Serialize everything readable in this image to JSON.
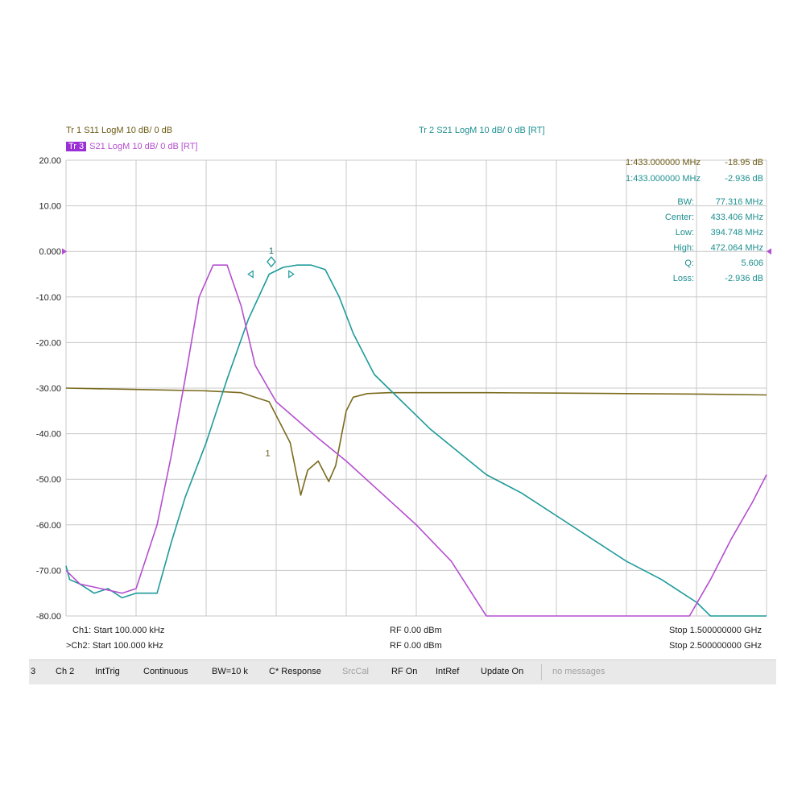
{
  "header": {
    "tr1": "Tr 1   S11  LogM  10 dB/  0 dB",
    "tr3_tag": "Tr 3",
    "tr3": "S21  LogM  10 dB/  0 dB [RT]",
    "tr2": "Tr 2   S21  LogM  10 dB/  0 dB [RT]"
  },
  "markers": {
    "m1_s11": {
      "label": "1:433.000000 MHz",
      "value": "-18.95 dB"
    },
    "m1_s21": {
      "label": "1:433.000000 MHz",
      "value": "-2.936 dB"
    }
  },
  "bw_stats": [
    {
      "label": "BW:",
      "value": "77.316 MHz"
    },
    {
      "label": "Center:",
      "value": "433.406 MHz"
    },
    {
      "label": "Low:",
      "value": "394.748 MHz"
    },
    {
      "label": "High:",
      "value": "472.064 MHz"
    },
    {
      "label": "Q:",
      "value": "5.606"
    },
    {
      "label": "Loss:",
      "value": "-2.936 dB"
    }
  ],
  "channels": {
    "ch1_start": "Ch1: Start 100.000 kHz",
    "ch1_power": "RF 0.00 dBm",
    "ch1_stop": "Stop 1.500000000 GHz",
    "ch2_start": ">Ch2: Start 100.000 kHz",
    "ch2_power": "RF 0.00 dBm",
    "ch2_stop": "Stop 2.500000000 GHz"
  },
  "statusbar": {
    "items": [
      "3",
      "Ch 2",
      "IntTrig",
      "Continuous",
      "BW=10 k",
      "C* Response",
      "SrcCal",
      "RF On",
      "IntRef",
      "Update On",
      "no messages"
    ]
  },
  "chart_data": {
    "type": "line",
    "ylim": [
      -80,
      20
    ],
    "xlim": [
      0,
      10
    ],
    "grid": true,
    "yticks": [
      "20.00",
      "10.00",
      "0.000",
      "-10.00",
      "-20.00",
      "-30.00",
      "-40.00",
      "-50.00",
      "-60.00",
      "-70.00",
      "-80.00"
    ],
    "colors": {
      "s11": "#7a6a1c",
      "s21_ch2": "#1f9a9a",
      "s21_ch1": "#b44fcf"
    },
    "series": [
      {
        "name": "Tr 1 S11",
        "color": "#7a6a1c",
        "x": [
          0,
          1,
          2,
          2.5,
          2.9,
          3.2,
          3.35,
          3.45,
          3.6,
          3.75,
          3.85,
          4.0,
          4.1,
          4.3,
          4.6,
          5,
          6,
          7,
          8,
          9,
          10
        ],
        "y": [
          -30.0,
          -30.3,
          -30.6,
          -31.0,
          -33.0,
          -42.0,
          -53.5,
          -48.0,
          -46.0,
          -50.5,
          -47.0,
          -35.0,
          -32.0,
          -31.2,
          -31.0,
          -31.0,
          -31.0,
          -31.1,
          -31.2,
          -31.3,
          -31.5
        ]
      },
      {
        "name": "Tr 2 S21",
        "color": "#1f9a9a",
        "x": [
          0,
          0.05,
          0.2,
          0.4,
          0.6,
          0.8,
          1.0,
          1.2,
          1.3,
          1.5,
          1.7,
          2.0,
          2.3,
          2.6,
          2.9,
          3.1,
          3.3,
          3.5,
          3.7,
          3.9,
          4.1,
          4.4,
          4.8,
          5.2,
          5.6,
          6.0,
          6.5,
          7.0,
          7.5,
          8.0,
          8.5,
          8.8,
          9.0,
          9.2,
          9.5,
          10
        ],
        "y": [
          -69,
          -72,
          -73,
          -75,
          -74,
          -76,
          -75,
          -75,
          -75,
          -64,
          -54,
          -42,
          -28,
          -15,
          -5,
          -3.5,
          -3,
          -3,
          -4,
          -10,
          -18,
          -27,
          -33,
          -39,
          -44,
          -49,
          -53,
          -58,
          -63,
          -68,
          -72,
          -75,
          -77,
          -80,
          -80,
          -80
        ]
      },
      {
        "name": "Tr 3 S21",
        "color": "#b44fcf",
        "x": [
          0,
          0.2,
          0.5,
          0.8,
          1.0,
          1.3,
          1.5,
          1.7,
          1.9,
          2.1,
          2.3,
          2.5,
          2.7,
          3.0,
          3.3,
          3.6,
          4.0,
          4.5,
          5.0,
          5.5,
          6.0,
          6.5,
          7.0,
          7.5,
          8.0,
          8.5,
          8.9,
          9.2,
          9.5,
          9.8,
          10
        ],
        "y": [
          -70,
          -73,
          -74,
          -75,
          -74,
          -60,
          -45,
          -28,
          -10,
          -3,
          -3,
          -12,
          -25,
          -33,
          -37,
          -41,
          -46,
          -53,
          -60,
          -68,
          -80,
          -80,
          -80,
          -80,
          -80,
          -80,
          -80,
          -72,
          -63,
          -55,
          -49
        ]
      }
    ]
  }
}
